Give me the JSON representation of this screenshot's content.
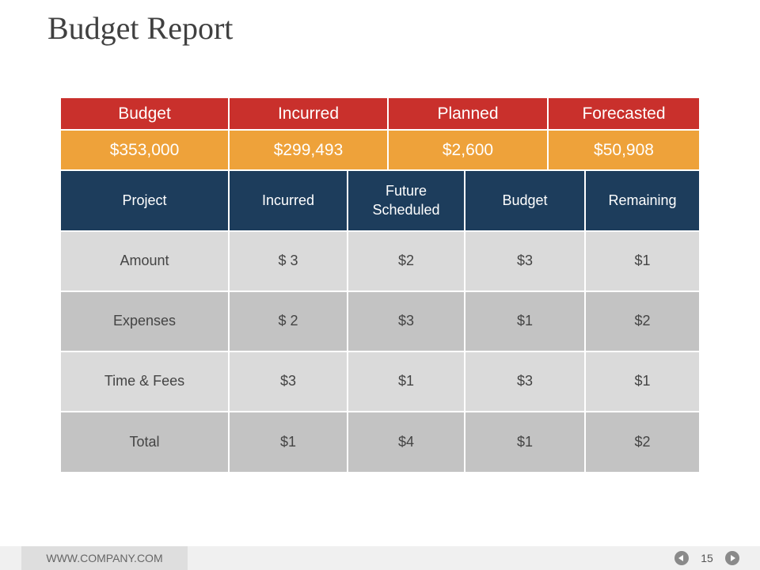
{
  "header": {
    "title": "Budget Report"
  },
  "summary": {
    "headers": [
      "Budget",
      "Incurred",
      "Planned",
      "Forecasted"
    ],
    "values": [
      "$353,000",
      "$299,493",
      "$2,600",
      "$50,908"
    ]
  },
  "table": {
    "headers": [
      "Project",
      "Incurred",
      "Future Scheduled",
      "Budget",
      "Remaining"
    ],
    "rows": [
      [
        "Amount",
        "$ 3",
        "$2",
        "$3",
        "$1"
      ],
      [
        "Expenses",
        "$ 2",
        "$3",
        "$1",
        "$2"
      ],
      [
        "Time & Fees",
        "$3",
        "$1",
        "$3",
        "$1"
      ],
      [
        "Total",
        "$1",
        "$4",
        "$1",
        "$2"
      ]
    ]
  },
  "footer": {
    "website": "WWW.COMPANY.COM",
    "page": "15"
  }
}
